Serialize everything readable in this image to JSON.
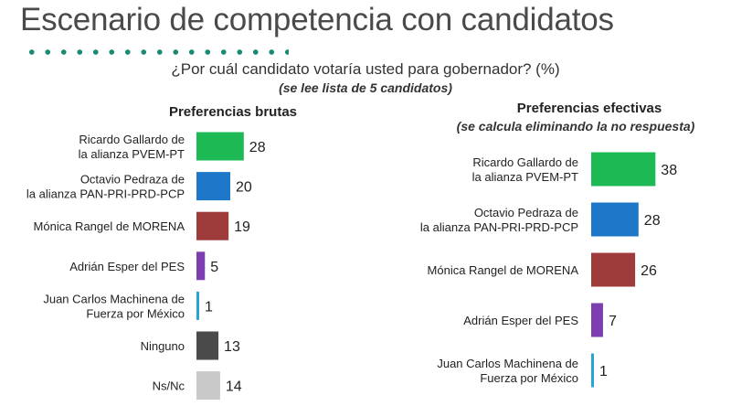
{
  "page": {
    "title": "Escenario de competencia con candidatos",
    "question": "¿Por cuál candidato votaría usted para gobernador? (%)",
    "question_note": "(se lee lista de 5 candidatos)"
  },
  "chart_data": [
    {
      "type": "bar",
      "orientation": "horizontal",
      "title": "Preferencias brutas",
      "subtitle": "",
      "categories": [
        [
          "Ricardo Gallardo de",
          "la alianza PVEM-PT"
        ],
        [
          "Octavio Pedraza de",
          "la alianza PAN-PRI-PRD-PCP"
        ],
        [
          "Mónica Rangel de MORENA"
        ],
        [
          "Adrián Esper del PES"
        ],
        [
          "Juan Carlos Machinena de",
          "Fuerza por México"
        ],
        [
          "Ninguno"
        ],
        [
          "Ns/Nc"
        ]
      ],
      "values": [
        28,
        20,
        19,
        5,
        1,
        13,
        14
      ],
      "colors": [
        "#1db954",
        "#1f77c9",
        "#9e3b3b",
        "#7b3fb2",
        "#2aa3d6",
        "#4a4a4a",
        "#c9c9c9"
      ],
      "data_labels": true
    },
    {
      "type": "bar",
      "orientation": "horizontal",
      "title": "Preferencias efectivas",
      "subtitle": "(se calcula eliminando la no respuesta)",
      "categories": [
        [
          "Ricardo Gallardo de",
          "la alianza PVEM-PT"
        ],
        [
          "Octavio Pedraza de",
          "la alianza PAN-PRI-PRD-PCP"
        ],
        [
          "Mónica Rangel de MORENA"
        ],
        [
          "Adrián Esper del PES"
        ],
        [
          "Juan Carlos Machinena de",
          "Fuerza por México"
        ]
      ],
      "values": [
        38,
        28,
        26,
        7,
        1
      ],
      "colors": [
        "#1db954",
        "#1f77c9",
        "#9e3b3b",
        "#7b3fb2",
        "#2aa3d6"
      ],
      "data_labels": true
    }
  ]
}
